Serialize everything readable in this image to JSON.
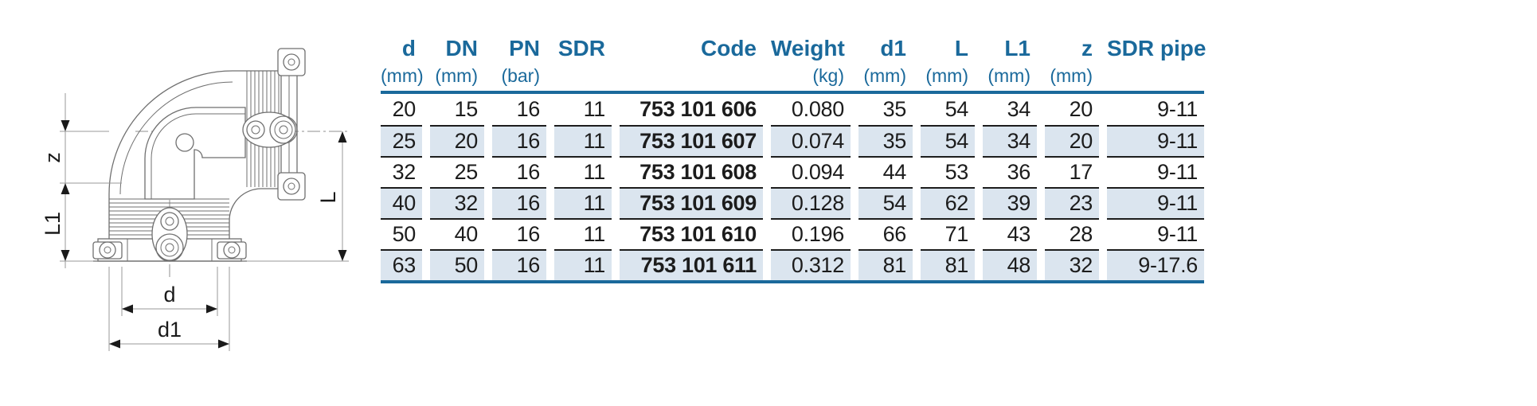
{
  "drawing": {
    "description": "technical line drawing of 90-degree electrofusion elbow fitting",
    "dim_labels": {
      "z": "z",
      "l1": "L1",
      "l": "L",
      "d": "d",
      "d1": "d1"
    }
  },
  "table": {
    "columns": [
      {
        "label": "d",
        "unit": "(mm)"
      },
      {
        "label": "DN",
        "unit": "(mm)"
      },
      {
        "label": "PN",
        "unit": "(bar)"
      },
      {
        "label": "SDR",
        "unit": ""
      },
      {
        "label": "Code",
        "unit": ""
      },
      {
        "label": "Weight",
        "unit": "(kg)"
      },
      {
        "label": "d1",
        "unit": "(mm)"
      },
      {
        "label": "L",
        "unit": "(mm)"
      },
      {
        "label": "L1",
        "unit": "(mm)"
      },
      {
        "label": "z",
        "unit": "(mm)"
      },
      {
        "label": "SDR pipe",
        "unit": ""
      }
    ],
    "rows": [
      [
        "20",
        "15",
        "16",
        "11",
        "753 101 606",
        "0.080",
        "35",
        "54",
        "34",
        "20",
        "9-11"
      ],
      [
        "25",
        "20",
        "16",
        "11",
        "753 101 607",
        "0.074",
        "35",
        "54",
        "34",
        "20",
        "9-11"
      ],
      [
        "32",
        "25",
        "16",
        "11",
        "753 101 608",
        "0.094",
        "44",
        "53",
        "36",
        "17",
        "9-11"
      ],
      [
        "40",
        "32",
        "16",
        "11",
        "753 101 609",
        "0.128",
        "54",
        "62",
        "39",
        "23",
        "9-11"
      ],
      [
        "50",
        "40",
        "16",
        "11",
        "753 101 610",
        "0.196",
        "66",
        "71",
        "43",
        "28",
        "9-11"
      ],
      [
        "63",
        "50",
        "16",
        "11",
        "753 101 611",
        "0.312",
        "81",
        "81",
        "48",
        "32",
        "9-17.6"
      ]
    ]
  },
  "colors": {
    "accent_blue": "#1a699b",
    "row_shade": "#dbe5ef",
    "text": "#1c1c1c",
    "drawing_lines": "#6f6f6f"
  }
}
